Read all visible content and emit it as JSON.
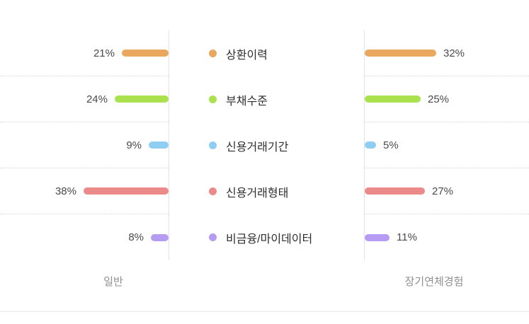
{
  "chart_data": {
    "type": "bar",
    "orientation": "horizontal",
    "layout": "mirrored-diverging-with-center-legend",
    "title": "",
    "unit": "%",
    "categories": [
      "상환이력",
      "부채수준",
      "신용거래기간",
      "신용거래형태",
      "비금융/마이데이터"
    ],
    "colors": [
      "#e9a85d",
      "#a9e14f",
      "#8fcef2",
      "#ec8a8a",
      "#b59cf2"
    ],
    "series": [
      {
        "name": "일반",
        "side": "left",
        "values": [
          21,
          24,
          9,
          38,
          8
        ],
        "labels": [
          "21%",
          "24%",
          "9%",
          "38%",
          "8%"
        ]
      },
      {
        "name": "장기연체경험",
        "side": "right",
        "values": [
          32,
          25,
          5,
          27,
          11
        ],
        "labels": [
          "32%",
          "25%",
          "5%",
          "27%",
          "11%"
        ]
      }
    ],
    "value_range": [
      0,
      40
    ],
    "grid": "dotted-horizontal-row-separators",
    "legend_position": "center-column"
  }
}
